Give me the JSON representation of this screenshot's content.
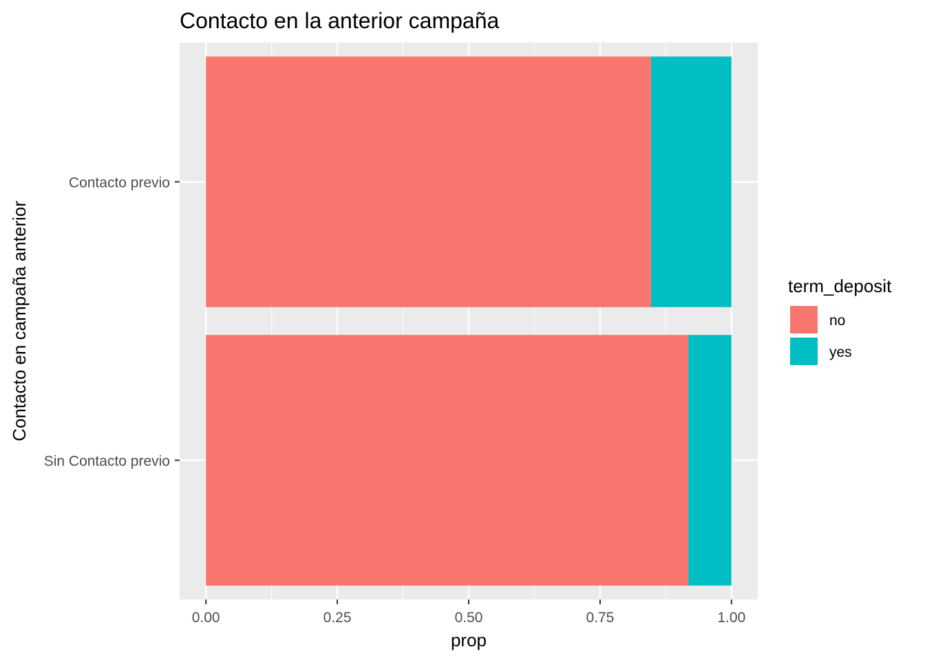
{
  "chart_data": {
    "type": "bar",
    "orientation": "horizontal",
    "stacked": true,
    "title": "Contacto en la anterior campaña",
    "xlabel": "prop",
    "ylabel": "Contacto en campaña anterior",
    "categories": [
      "Contacto previo",
      "Sin Contacto previo"
    ],
    "series": [
      {
        "name": "no",
        "values": [
          0.847,
          0.918
        ],
        "color": "#F8766D"
      },
      {
        "name": "yes",
        "values": [
          0.153,
          0.082
        ],
        "color": "#00BFC4"
      }
    ],
    "xlim": [
      -0.05,
      1.05
    ],
    "x_ticks": [
      "0.00",
      "0.25",
      "0.50",
      "0.75",
      "1.00"
    ],
    "x_tick_values": [
      0,
      0.25,
      0.5,
      0.75,
      1.0
    ],
    "x_minor_tick_values": [
      0.125,
      0.375,
      0.625,
      0.875
    ],
    "grid": true,
    "legend": {
      "title": "term_deposit",
      "placement": "right",
      "items": [
        "no",
        "yes"
      ]
    },
    "panel_background": "#EBEBEB",
    "grid_color": "#FFFFFF"
  }
}
